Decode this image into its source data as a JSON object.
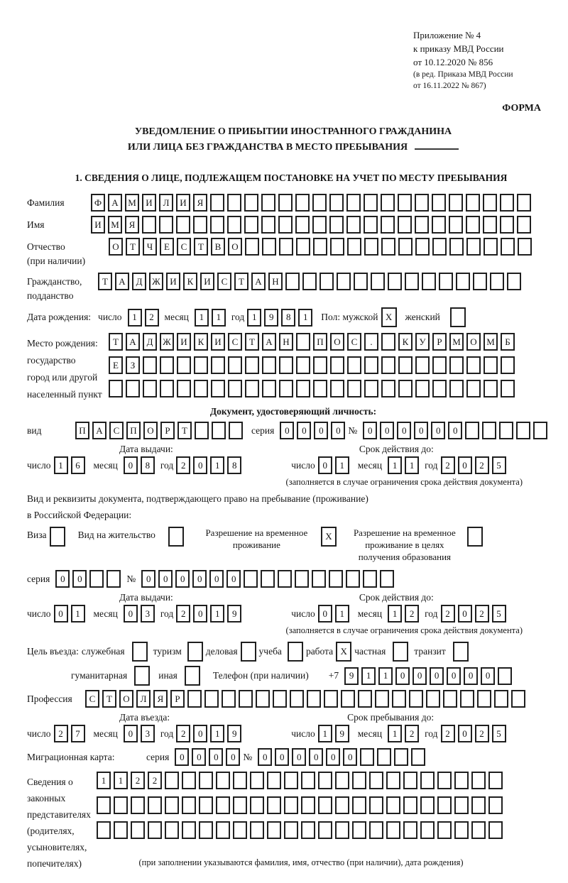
{
  "header": {
    "appendix_lines": [
      "Приложение № 4",
      "к приказу МВД России",
      "от 10.12.2020 № 856"
    ],
    "revision_lines": [
      "(в ред. Приказа МВД России",
      "от 16.11.2022 № 867)"
    ],
    "form_label": "ФОРМА"
  },
  "title": {
    "line1": "УВЕДОМЛЕНИЕ О ПРИБЫТИИ ИНОСТРАННОГО ГРАЖДАНИНА",
    "line2": "ИЛИ ЛИЦА БЕЗ ГРАЖДАНСТВА В МЕСТО ПРЕБЫВАНИЯ"
  },
  "section1": {
    "heading": "1. СВЕДЕНИЯ О ЛИЦЕ, ПОДЛЕЖАЩЕМ ПОСТАНОВКЕ НА УЧЕТ ПО МЕСТУ ПРЕБЫВАНИЯ",
    "surname": {
      "label": "Фамилия",
      "text": "ФАМИЛИЯ",
      "len": 26
    },
    "given_name": {
      "label": "Имя",
      "text": "ИМЯ",
      "len": 26
    },
    "patronymic": {
      "label": [
        "Отчество",
        "(при наличии)"
      ],
      "text": "ОТЧЕСТВО",
      "len": 25
    },
    "citizenship": {
      "label": [
        "Гражданство,",
        "подданство"
      ],
      "text": "ТАДЖИКИСТАН",
      "len": 25
    },
    "birth_date": {
      "label": "Дата рождения:",
      "d_label": "число",
      "d": {
        "text": "12",
        "len": 2
      },
      "m_label": "месяц",
      "m": {
        "text": "11",
        "len": 2
      },
      "y_label": "год",
      "y": {
        "text": "1981",
        "len": 4
      }
    },
    "gender": {
      "male_label": "Пол: мужской",
      "male": {
        "text": "X",
        "len": 1
      },
      "female_label": "женский",
      "female": {
        "text": "",
        "len": 1
      }
    },
    "birth_place": {
      "label": [
        "Место рождения:",
        "государство",
        "город или другой",
        "населенный пункт"
      ],
      "row1": {
        "text": "ТАДЖИКИСТАН ПОС. КУРМОМБ",
        "len": 24
      },
      "row2": {
        "text": "ЕЗ",
        "len": 24
      },
      "row3": {
        "text": "",
        "len": 24
      }
    },
    "identity_doc": {
      "heading": "Документ, удостоверяющий личность:",
      "kind_label": "вид",
      "kind": {
        "text": "ПАСПОРТ",
        "len": 10
      },
      "series_label": "серия",
      "series": {
        "text": "0000",
        "len": 4
      },
      "number_label": "№",
      "number": {
        "text": "000000",
        "len": 11
      },
      "issue_label": "Дата выдачи:",
      "expiry_label": "Срок действия до:",
      "issue": {
        "d_label": "число",
        "d": {
          "text": "16",
          "len": 2
        },
        "m_label": "месяц",
        "m": {
          "text": "08",
          "len": 2
        },
        "y_label": "год",
        "y": {
          "text": "2018",
          "len": 4
        }
      },
      "expiry": {
        "d_label": "число",
        "d": {
          "text": "01",
          "len": 2
        },
        "m_label": "месяц",
        "m": {
          "text": "11",
          "len": 2
        },
        "y_label": "год",
        "y": {
          "text": "2025",
          "len": 4
        }
      },
      "note": "(заполняется в случае ограничения срока действия документа)"
    },
    "stay_doc": {
      "heading1": "Вид и реквизиты документа, подтверждающего право на пребывание (проживание)",
      "heading2": "в Российской Федерации:",
      "visa_label": "Виза",
      "visa": {
        "text": "",
        "len": 1
      },
      "residence_label": "Вид на жительство",
      "residence": {
        "text": "",
        "len": 1
      },
      "rvp_label": [
        "Разрешение на временное",
        "проживание"
      ],
      "rvp": {
        "text": "X",
        "len": 1
      },
      "rvp_edu_label": [
        "Разрешение на временное",
        "проживание в целях",
        "получения образования"
      ],
      "rvp_edu": {
        "text": "",
        "len": 1
      },
      "series_label": "серия",
      "series": {
        "text": "00",
        "len": 4
      },
      "number_label": "№",
      "number": {
        "text": "000000",
        "len": 15
      },
      "issue_label": "Дата выдачи:",
      "expiry_label": "Срок действия до:",
      "issue": {
        "d_label": "число",
        "d": {
          "text": "01",
          "len": 2
        },
        "m_label": "месяц",
        "m": {
          "text": "03",
          "len": 2
        },
        "y_label": "год",
        "y": {
          "text": "2019",
          "len": 4
        }
      },
      "expiry": {
        "d_label": "число",
        "d": {
          "text": "01",
          "len": 2
        },
        "m_label": "месяц",
        "m": {
          "text": "12",
          "len": 2
        },
        "y_label": "год",
        "y": {
          "text": "2025",
          "len": 4
        }
      },
      "note": "(заполняется в случае ограничения срока действия документа)"
    },
    "visit_purpose": {
      "label": "Цель въезда:",
      "official_label": "служебная",
      "official": {
        "text": "",
        "len": 1
      },
      "tourism_label": "туризм",
      "tourism": {
        "text": "",
        "len": 1
      },
      "business_label": "деловая",
      "business": {
        "text": "",
        "len": 1
      },
      "study_label": "учеба",
      "study": {
        "text": "",
        "len": 1
      },
      "work_label": "работа",
      "work": {
        "text": "X",
        "len": 1
      },
      "private_label": "частная",
      "private": {
        "text": "",
        "len": 1
      },
      "transit_label": "транзит",
      "transit": {
        "text": "",
        "len": 1
      },
      "humanitarian_label": "гуманитарная",
      "humanitarian": {
        "text": "",
        "len": 1
      },
      "other_label": "иная",
      "other": {
        "text": "",
        "len": 1
      }
    },
    "phone": {
      "label": "Телефон (при наличии)",
      "prefix": "+7",
      "value": {
        "text": "911000000",
        "len": 10
      }
    },
    "profession": {
      "label": "Профессия",
      "value": {
        "text": "СТОЛЯР",
        "len": 26
      }
    },
    "entry": {
      "issue_label": "Дата въезда:",
      "expiry_label": "Срок пребывания до:",
      "issue": {
        "d_label": "число",
        "d": {
          "text": "27",
          "len": 2
        },
        "m_label": "месяц",
        "m": {
          "text": "03",
          "len": 2
        },
        "y_label": "год",
        "y": {
          "text": "2019",
          "len": 4
        }
      },
      "expiry": {
        "d_label": "число",
        "d": {
          "text": "19",
          "len": 2
        },
        "m_label": "месяц",
        "m": {
          "text": "12",
          "len": 2
        },
        "y_label": "год",
        "y": {
          "text": "2025",
          "len": 4
        }
      }
    },
    "migration_card": {
      "label": "Миграционная карта:",
      "series_label": "серия",
      "series": {
        "text": "0000",
        "len": 4
      },
      "number_label": "№",
      "number": {
        "text": "000000",
        "len": 10
      }
    },
    "representatives": {
      "label": [
        "Сведения о",
        "законных",
        "представителях",
        "(родителях,",
        "усыновителях,",
        "попечителях)"
      ],
      "row1": {
        "text": "1122",
        "len": 24
      },
      "row2": {
        "text": "",
        "len": 24
      },
      "row3": {
        "text": "",
        "len": 24
      },
      "note": "(при заполнении указываются фамилия, имя, отчество (при наличии), дата рождения)"
    }
  }
}
